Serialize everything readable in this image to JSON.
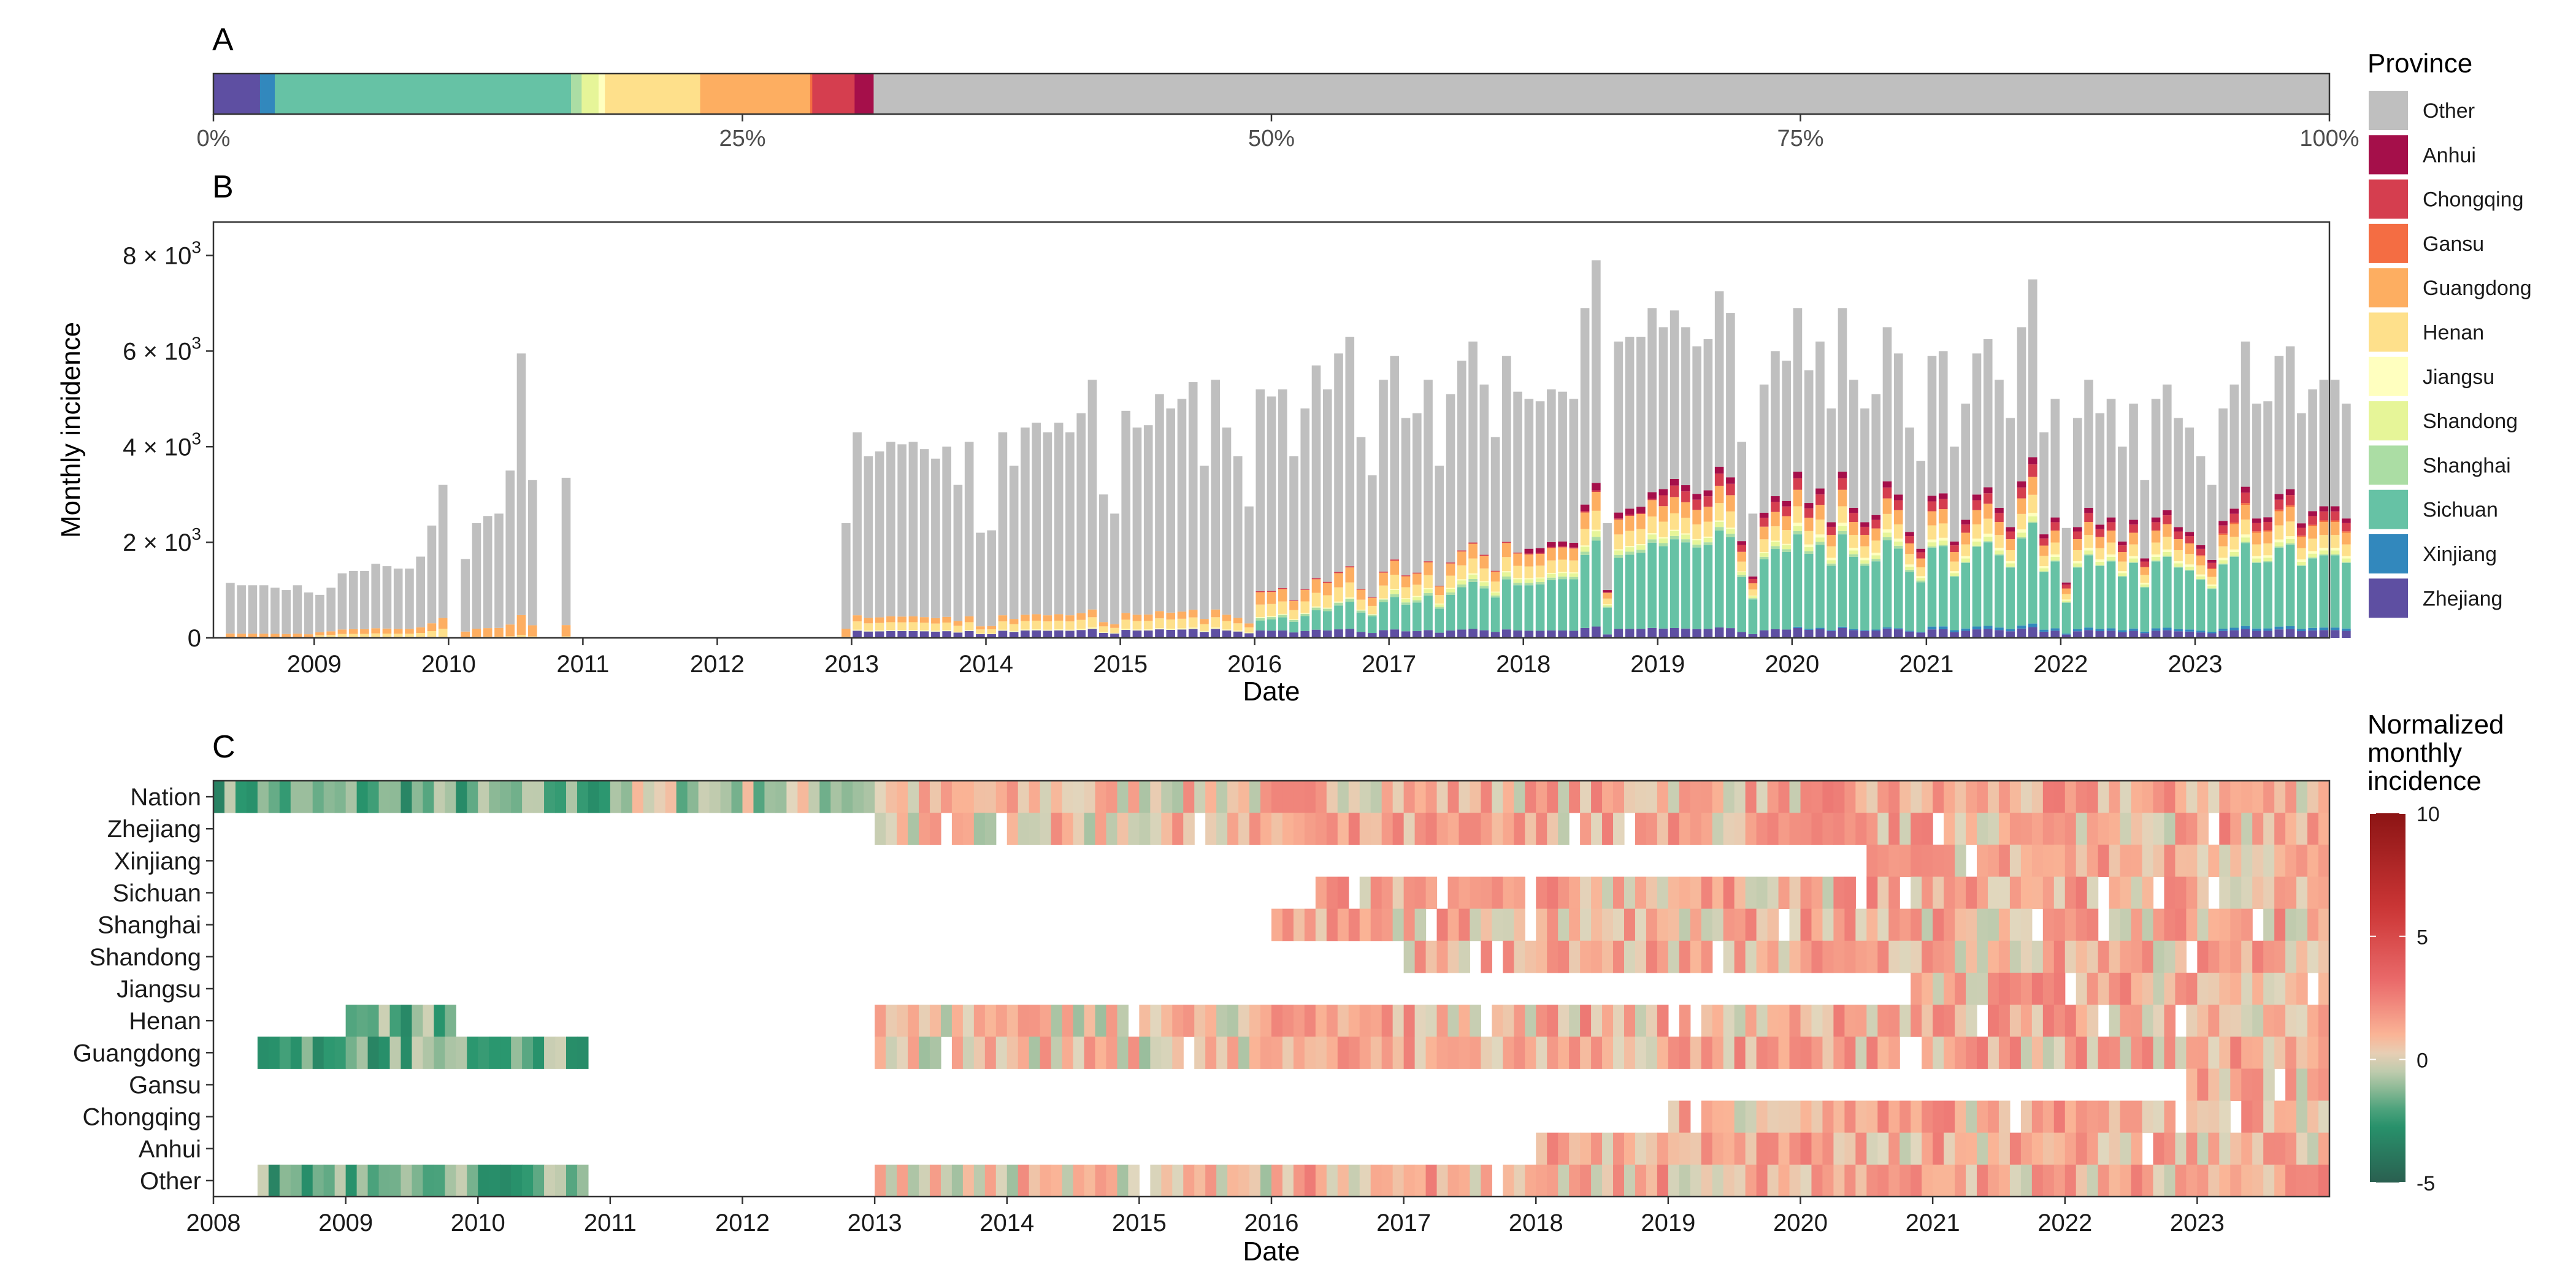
{
  "colors": {
    "Other": "#bfbfbf",
    "Anhui": "#a50f4a",
    "Chongqing": "#d53e4f",
    "Gansu": "#f46d43",
    "Guangdong": "#fdae61",
    "Henan": "#fee08b",
    "Jiangsu": "#ffffbf",
    "Shandong": "#e6f598",
    "Shanghai": "#abdda4",
    "Sichuan": "#66c2a5",
    "Xinjiang": "#3288bd",
    "Zhejiang": "#5e4fa2"
  },
  "chart_data": [
    {
      "panel": "A",
      "type": "bar",
      "orientation": "horizontal-stacked-100",
      "xticks": [
        "0%",
        "25%",
        "50%",
        "75%",
        "100%"
      ],
      "xtick_values": [
        0,
        25,
        50,
        75,
        100
      ],
      "segments": [
        {
          "name": "Zhejiang",
          "value": 2.2
        },
        {
          "name": "Xinjiang",
          "value": 0.7
        },
        {
          "name": "Sichuan",
          "value": 14.0
        },
        {
          "name": "Shanghai",
          "value": 0.5
        },
        {
          "name": "Shandong",
          "value": 0.8
        },
        {
          "name": "Jiangsu",
          "value": 0.3
        },
        {
          "name": "Henan",
          "value": 4.5
        },
        {
          "name": "Guangdong",
          "value": 5.2
        },
        {
          "name": "Gansu",
          "value": 0.1
        },
        {
          "name": "Chongqing",
          "value": 2.0
        },
        {
          "name": "Anhui",
          "value": 0.9
        },
        {
          "name": "Other",
          "value": 68.8
        }
      ]
    },
    {
      "panel": "B",
      "type": "bar",
      "stacked": true,
      "xlabel": "Date",
      "ylabel": "Monthly incidence",
      "ylim": [
        0,
        8700
      ],
      "xlim": [
        "2008-04",
        "2023-12"
      ],
      "xticks": [
        "2009",
        "2010",
        "2011",
        "2012",
        "2013",
        "2014",
        "2015",
        "2016",
        "2017",
        "2018",
        "2019",
        "2020",
        "2021",
        "2022",
        "2023"
      ],
      "ytick_values": [
        0,
        2000,
        4000,
        6000,
        8000
      ],
      "ytick_labels": [
        {
          "mantissa": "0",
          "exp": ""
        },
        {
          "mantissa": "2 × 10",
          "exp": "3"
        },
        {
          "mantissa": "4 × 10",
          "exp": "3"
        },
        {
          "mantissa": "6 × 10",
          "exp": "3"
        },
        {
          "mantissa": "8 × 10",
          "exp": "3"
        }
      ],
      "start_month": "2008-05",
      "monthly_totals": [
        1150,
        1100,
        1100,
        1100,
        1050,
        1000,
        1100,
        950,
        900,
        1050,
        1350,
        1400,
        1400,
        1550,
        1500,
        1450,
        1450,
        1700,
        2350,
        3200,
        null,
        1650,
        2400,
        2550,
        2600,
        3500,
        5950,
        3300,
        null,
        null,
        3350,
        null,
        null,
        null,
        null,
        null,
        null,
        null,
        null,
        null,
        null,
        null,
        null,
        null,
        null,
        null,
        null,
        null,
        null,
        null,
        null,
        null,
        null,
        null,
        null,
        2400,
        4300,
        3800,
        3900,
        4100,
        4050,
        4100,
        3950,
        3750,
        4000,
        3200,
        4100,
        2200,
        2250,
        4300,
        3600,
        4400,
        4500,
        4300,
        4500,
        4300,
        4700,
        5400,
        3000,
        2600,
        4750,
        4400,
        4450,
        5100,
        4800,
        5000,
        5350,
        3600,
        5400,
        4400,
        3800,
        2750,
        5200,
        5050,
        5200,
        3800,
        4800,
        5700,
        5200,
        5950,
        6300,
        4200,
        3400,
        5400,
        5900,
        4600,
        4700,
        5400,
        3600,
        5100,
        5800,
        6200,
        5300,
        4200,
        5900,
        5150,
        5000,
        4950,
        5200,
        5150,
        5000,
        6900,
        7900,
        2400,
        6200,
        6300,
        6300,
        6900,
        6500,
        6850,
        6500,
        6100,
        6250,
        7250,
        6800,
        4100,
        2600,
        5300,
        6000,
        5800,
        6900,
        5600,
        6200,
        4800,
        6900,
        5400,
        4800,
        5100,
        6500,
        5950,
        4400,
        3700,
        5900,
        6000,
        4000,
        4900,
        5950,
        6250,
        5400,
        4600,
        6500,
        7500,
        4300,
        5000,
        2300,
        4600,
        5400,
        4700,
        5000,
        4000,
        4900,
        3300,
        5000,
        5300,
        4600,
        4400,
        3800,
        3200,
        4800,
        5300,
        6200,
        4900,
        4950,
        5900,
        6100,
        4700,
        5200,
        5400,
        5400,
        4900
      ],
      "province_order": [
        "Zhejiang",
        "Xinjiang",
        "Sichuan",
        "Shanghai",
        "Shandong",
        "Jiangsu",
        "Henan",
        "Guangdong",
        "Gansu",
        "Chongqing",
        "Anhui",
        "Other"
      ]
    },
    {
      "panel": "C",
      "type": "heatmap",
      "xlabel": "Date",
      "xlim": [
        "2008-01",
        "2023-12"
      ],
      "xticks": [
        "2008",
        "2009",
        "2010",
        "2011",
        "2012",
        "2013",
        "2014",
        "2015",
        "2016",
        "2017",
        "2018",
        "2019",
        "2020",
        "2021",
        "2022",
        "2023"
      ],
      "rows": [
        "Nation",
        "Zhejiang",
        "Xinjiang",
        "Sichuan",
        "Shanghai",
        "Shandong",
        "Jiangsu",
        "Henan",
        "Guangdong",
        "Gansu",
        "Chongqing",
        "Anhui",
        "Other"
      ],
      "row_coverage": [
        {
          "row": "Nation",
          "spans": [
            [
              "2008-01",
              "2023-12"
            ]
          ]
        },
        {
          "row": "Zhejiang",
          "spans": [
            [
              "2013-01",
              "2023-12"
            ]
          ]
        },
        {
          "row": "Xinjiang",
          "spans": [
            [
              "2020-07",
              "2023-12"
            ]
          ]
        },
        {
          "row": "Sichuan",
          "spans": [
            [
              "2016-05",
              "2023-12"
            ]
          ]
        },
        {
          "row": "Shanghai",
          "spans": [
            [
              "2016-01",
              "2023-12"
            ]
          ]
        },
        {
          "row": "Shandong",
          "spans": [
            [
              "2017-01",
              "2023-12"
            ]
          ]
        },
        {
          "row": "Jiangsu",
          "spans": [
            [
              "2020-10",
              "2023-12"
            ]
          ]
        },
        {
          "row": "Henan",
          "spans": [
            [
              "2009-01",
              "2009-10"
            ],
            [
              "2013-01",
              "2023-12"
            ]
          ]
        },
        {
          "row": "Guangdong",
          "spans": [
            [
              "2008-05",
              "2010-10"
            ],
            [
              "2013-01",
              "2023-12"
            ]
          ]
        },
        {
          "row": "Gansu",
          "spans": [
            [
              "2022-12",
              "2023-12"
            ]
          ]
        },
        {
          "row": "Chongqing",
          "spans": [
            [
              "2019-01",
              "2023-12"
            ]
          ]
        },
        {
          "row": "Anhui",
          "spans": [
            [
              "2018-01",
              "2023-12"
            ]
          ]
        },
        {
          "row": "Other",
          "spans": [
            [
              "2008-05",
              "2010-10"
            ],
            [
              "2013-01",
              "2023-12"
            ]
          ]
        }
      ],
      "colorbar": {
        "title": [
          "Normalized",
          "monthly",
          "incidence"
        ],
        "ticks": [
          10,
          5,
          0,
          -5
        ],
        "range": [
          -5,
          10
        ]
      }
    }
  ],
  "legend": {
    "title": "Province",
    "entries": [
      "Other",
      "Anhui",
      "Chongqing",
      "Gansu",
      "Guangdong",
      "Henan",
      "Jiangsu",
      "Shandong",
      "Shanghai",
      "Sichuan",
      "Xinjiang",
      "Zhejiang"
    ]
  },
  "panel_tags": {
    "a": "A",
    "b": "B",
    "c": "C"
  }
}
